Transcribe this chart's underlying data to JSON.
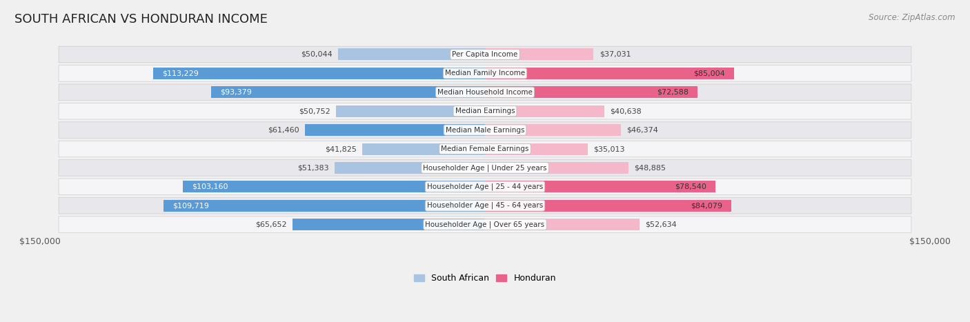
{
  "title": "SOUTH AFRICAN VS HONDURAN INCOME",
  "source": "Source: ZipAtlas.com",
  "categories": [
    "Per Capita Income",
    "Median Family Income",
    "Median Household Income",
    "Median Earnings",
    "Median Male Earnings",
    "Median Female Earnings",
    "Householder Age | Under 25 years",
    "Householder Age | 25 - 44 years",
    "Householder Age | 45 - 64 years",
    "Householder Age | Over 65 years"
  ],
  "south_african": [
    50044,
    113229,
    93379,
    50752,
    61460,
    41825,
    51383,
    103160,
    109719,
    65652
  ],
  "honduran": [
    37031,
    85004,
    72588,
    40638,
    46374,
    35013,
    48885,
    78540,
    84079,
    52634
  ],
  "south_african_labels": [
    "$50,044",
    "$113,229",
    "$93,379",
    "$50,752",
    "$61,460",
    "$41,825",
    "$51,383",
    "$103,160",
    "$109,719",
    "$65,652"
  ],
  "honduran_labels": [
    "$37,031",
    "$85,004",
    "$72,588",
    "$40,638",
    "$46,374",
    "$35,013",
    "$48,885",
    "$78,540",
    "$84,079",
    "$52,634"
  ],
  "sa_inside_label": [
    false,
    true,
    true,
    false,
    false,
    false,
    false,
    true,
    true,
    false
  ],
  "hon_inside_label": [
    false,
    true,
    true,
    false,
    false,
    false,
    false,
    true,
    true,
    false
  ],
  "max_val": 150000,
  "sa_color_light": "#a8c4e0",
  "sa_color_dark": "#5b9bd5",
  "hon_color_light": "#f5b8cb",
  "hon_color_dark": "#e8628a",
  "bg_color": "#f0f0f0",
  "row_bg_odd": "#e8e8ec",
  "row_bg_even": "#f5f5f8",
  "xlabel_left": "$150,000",
  "xlabel_right": "$150,000",
  "title_fontsize": 13,
  "source_fontsize": 8.5,
  "val_label_fontsize": 8,
  "cat_label_fontsize": 7.5,
  "legend_fontsize": 9
}
